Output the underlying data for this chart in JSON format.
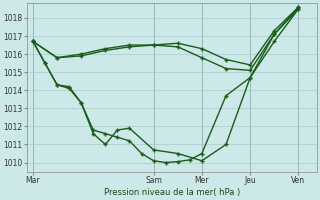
{
  "background_color": "#cce8e8",
  "grid_color": "#aacccc",
  "line_color": "#1a5c1a",
  "marker_color": "#1a5c1a",
  "xlabel": "Pression niveau de la mer( hPa )",
  "ylim": [
    1009.5,
    1018.8
  ],
  "yticks": [
    1010,
    1011,
    1012,
    1013,
    1014,
    1015,
    1016,
    1017,
    1018
  ],
  "xtick_labels": [
    "Mar",
    "Sam",
    "Mer",
    "Jeu",
    "Ven"
  ],
  "xtick_positions": [
    0,
    10,
    14,
    18,
    22
  ],
  "xlim": [
    -0.5,
    23.5
  ],
  "vlines": [
    0,
    10,
    14,
    18,
    22
  ],
  "series1_x": [
    0,
    2,
    4,
    6,
    8,
    10,
    12,
    14,
    16,
    18,
    20,
    22
  ],
  "series1_y": [
    1016.7,
    1015.8,
    1015.9,
    1016.2,
    1016.4,
    1016.5,
    1016.6,
    1016.3,
    1015.7,
    1015.4,
    1017.3,
    1018.6
  ],
  "series2_x": [
    0,
    2,
    4,
    6,
    8,
    10,
    12,
    14,
    16,
    18,
    20,
    22
  ],
  "series2_y": [
    1016.7,
    1015.8,
    1016.0,
    1016.3,
    1016.5,
    1016.5,
    1016.4,
    1015.8,
    1015.2,
    1015.1,
    1017.1,
    1018.6
  ],
  "series3_x": [
    0,
    1,
    2,
    3,
    4,
    5,
    6,
    7,
    8,
    10,
    12,
    14,
    16,
    18,
    20,
    22
  ],
  "series3_y": [
    1016.7,
    1015.5,
    1014.3,
    1014.2,
    1013.3,
    1011.6,
    1011.0,
    1011.8,
    1011.9,
    1010.7,
    1010.5,
    1010.1,
    1011.0,
    1014.7,
    1016.7,
    1018.5
  ],
  "series4_x": [
    0,
    1,
    2,
    3,
    4,
    5,
    6,
    7,
    8,
    9,
    10,
    11,
    12,
    13,
    14,
    16,
    18,
    20,
    22
  ],
  "series4_y": [
    1016.7,
    1015.5,
    1014.3,
    1014.1,
    1013.3,
    1011.8,
    1011.6,
    1011.4,
    1011.2,
    1010.5,
    1010.1,
    1010.0,
    1010.05,
    1010.15,
    1010.5,
    1013.7,
    1014.7,
    1017.1,
    1018.5
  ]
}
